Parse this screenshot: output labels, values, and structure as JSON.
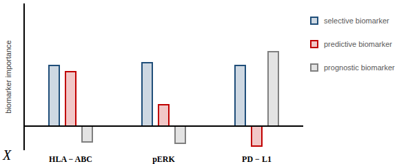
{
  "chart_data": {
    "type": "bar",
    "x_label": "X",
    "y_label": "biomarker importance",
    "categories": [
      "HLA − ABC",
      "pERK",
      "PD − L1"
    ],
    "series": [
      {
        "name": "selective biomarker",
        "color": "#1f4e79",
        "values": [
          8.8,
          9.2,
          8.8
        ]
      },
      {
        "name": "predictive biomarker",
        "color": "#c00000",
        "values": [
          7.9,
          3.1,
          -2.9
        ]
      },
      {
        "name": "prognostic biomarker",
        "color": "#7f7f7f",
        "values": [
          -2.3,
          -2.5,
          10.8
        ]
      }
    ],
    "ylim": [
      -3.5,
      17.8
    ],
    "yticks": [],
    "tick_labels": "x",
    "legend": "right",
    "grid": false
  }
}
